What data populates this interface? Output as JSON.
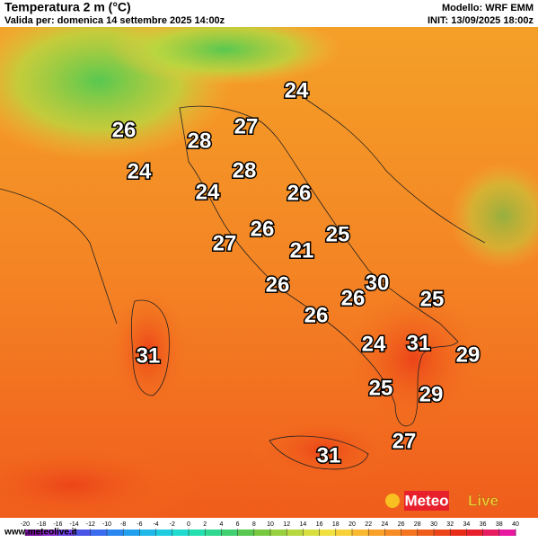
{
  "header": {
    "title": "Temperatura 2 m (°C)",
    "valid": "Valida per: domenica 14 settembre 2025 14:00z",
    "model": "Modello: WRF EMM",
    "init": "INIT: 13/09/2025 18:00z"
  },
  "city_temperatures": [
    24,
    26,
    28,
    27,
    24,
    28,
    24,
    26,
    26,
    27,
    21,
    25,
    26,
    30,
    26,
    25,
    26,
    24,
    31,
    29,
    31,
    25,
    29,
    27,
    31
  ],
  "colorbar": {
    "ticks": [
      -20,
      -18,
      -16,
      -14,
      -12,
      -10,
      -8,
      -6,
      -4,
      -2,
      0,
      2,
      4,
      6,
      8,
      10,
      12,
      14,
      16,
      18,
      20,
      22,
      24,
      26,
      28,
      30,
      32,
      34,
      36,
      38,
      40
    ],
    "colors": [
      "#7a0fa0",
      "#8a2bd0",
      "#6a3ee0",
      "#4a55e8",
      "#3a6cf0",
      "#2a86f0",
      "#22a0f0",
      "#20b8e8",
      "#20cce0",
      "#20dcd0",
      "#24e0b0",
      "#30d890",
      "#40d070",
      "#58c850",
      "#78c840",
      "#98d040",
      "#b8d840",
      "#d8e040",
      "#f0e040",
      "#f8d038",
      "#f8b830",
      "#f8a028",
      "#f88c24",
      "#f47420",
      "#f05c1c",
      "#ec4418",
      "#e82c18",
      "#e8202c",
      "#e81c60",
      "#e818a0"
    ]
  },
  "footer": {
    "url": "www.meteolive.it",
    "logo_a": "Meteo",
    "logo_b": "Live"
  }
}
